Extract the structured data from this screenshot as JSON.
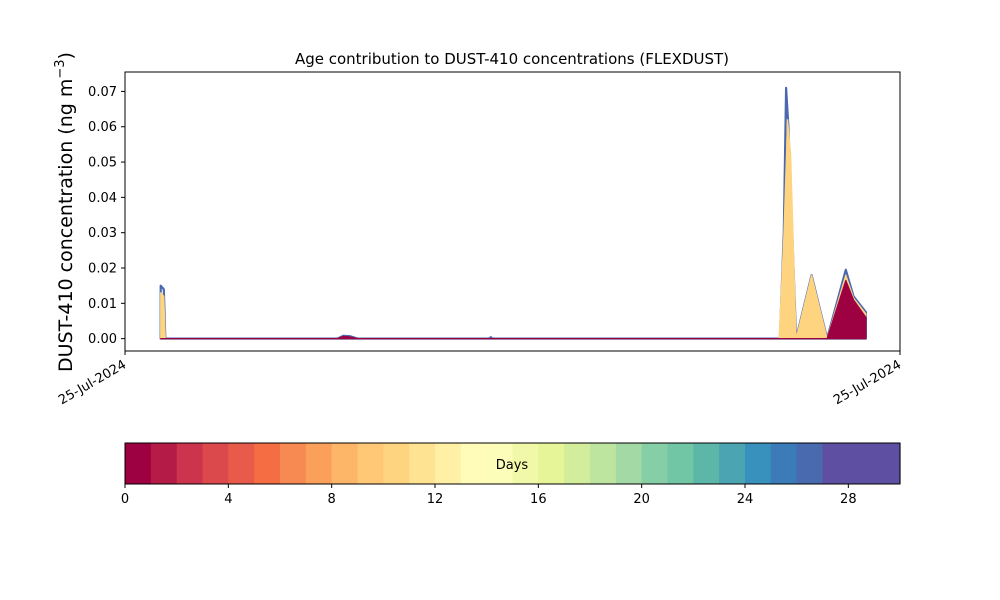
{
  "chart_data": {
    "type": "area",
    "title": "Age contribution to DUST-410 concentrations (FLEXDUST)",
    "ylabel": "DUST-410 concentration (ng m",
    "ylabel_sup": "−3",
    "ylabel_close": ")",
    "xlabel": "",
    "x_tick_labels": [
      "25-Jul-2024",
      "25-Jul-2024"
    ],
    "x_range": [
      0,
      1
    ],
    "ylim": [
      -0.0035,
      0.0755
    ],
    "y_ticks": [
      0.0,
      0.01,
      0.02,
      0.03,
      0.04,
      0.05,
      0.06,
      0.07
    ],
    "y_tick_labels": [
      "0.00",
      "0.01",
      "0.02",
      "0.03",
      "0.04",
      "0.05",
      "0.06",
      "0.07"
    ],
    "grid": false,
    "layers": [
      {
        "age_days": 0,
        "color": "#9e0142",
        "points": [
          [
            0.046,
            0.0
          ],
          [
            0.05,
            0.0
          ],
          [
            0.052,
            0.0
          ],
          [
            0.274,
            0.0
          ],
          [
            0.282,
            0.0006
          ],
          [
            0.29,
            0.0005
          ],
          [
            0.3,
            0.0
          ],
          [
            0.35,
            0.0
          ],
          [
            0.845,
            0.0
          ],
          [
            0.906,
            0.0
          ],
          [
            0.93,
            0.0165
          ],
          [
            0.94,
            0.011
          ],
          [
            0.956,
            0.006
          ],
          [
            0.956,
            0.0
          ]
        ]
      },
      {
        "age_days": 12,
        "color": "#fed481",
        "points": [
          [
            0.046,
            0.013
          ],
          [
            0.05,
            0.012
          ],
          [
            0.052,
            0.0
          ],
          [
            0.844,
            0.0
          ],
          [
            0.85,
            0.029
          ],
          [
            0.855,
            0.062
          ],
          [
            0.859,
            0.052
          ],
          [
            0.866,
            0.0
          ],
          [
            0.886,
            0.018
          ],
          [
            0.906,
            0.0
          ],
          [
            0.93,
            0.018
          ],
          [
            0.94,
            0.0115
          ],
          [
            0.956,
            0.007
          ],
          [
            0.956,
            0.0
          ]
        ]
      },
      {
        "age_days": 29,
        "color": "#4b68ae",
        "points": [
          [
            0.046,
            0.015
          ],
          [
            0.05,
            0.014
          ],
          [
            0.052,
            0.0
          ],
          [
            0.274,
            0.0
          ],
          [
            0.282,
            0.0008
          ],
          [
            0.29,
            0.0007
          ],
          [
            0.3,
            0.0
          ],
          [
            0.47,
            0.0
          ],
          [
            0.472,
            0.0004
          ],
          [
            0.474,
            0.0
          ],
          [
            0.845,
            0.0
          ],
          [
            0.85,
            0.03
          ],
          [
            0.853,
            0.071
          ],
          [
            0.856,
            0.06
          ],
          [
            0.866,
            0.0
          ],
          [
            0.886,
            0.018
          ],
          [
            0.906,
            0.0
          ],
          [
            0.93,
            0.0195
          ],
          [
            0.94,
            0.012
          ],
          [
            0.956,
            0.0075
          ]
        ]
      }
    ],
    "colorbar": {
      "label": "Days",
      "min": 0,
      "max": 30,
      "ticks": [
        0,
        4,
        8,
        12,
        16,
        20,
        24,
        28
      ],
      "tick_labels": [
        "0",
        "4",
        "8",
        "12",
        "16",
        "20",
        "24",
        "28"
      ],
      "colors": [
        "#9e0142",
        "#b51b47",
        "#cc334c",
        "#dc494c",
        "#e85b4a",
        "#f46d43",
        "#f78a53",
        "#fba05b",
        "#fdb567",
        "#fec877",
        "#fed481",
        "#fee392",
        "#fff0a6",
        "#fffbb8",
        "#fbfdb8",
        "#f1f9a9",
        "#e6f598",
        "#d2ed9c",
        "#bee5a0",
        "#a2d9a4",
        "#86cea5",
        "#71c6a5",
        "#5db7a9",
        "#4aa4b2",
        "#3890bd",
        "#3a7bb8",
        "#4a6aaf",
        "#5e4fa2",
        "#5e4fa2",
        "#5e4fa2"
      ]
    }
  }
}
